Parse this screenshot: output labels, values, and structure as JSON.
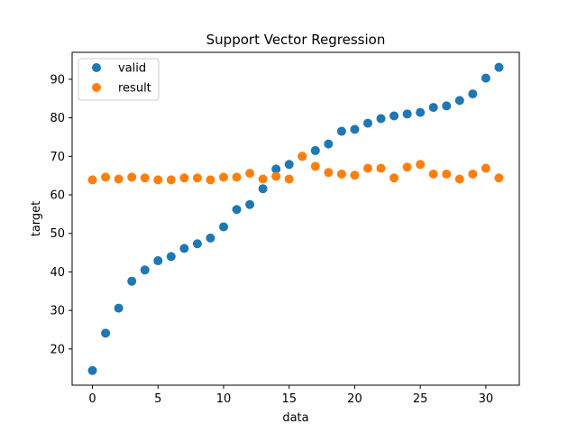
{
  "chart_data": {
    "type": "scatter",
    "title": "Support Vector Regression",
    "xlabel": "data",
    "ylabel": "target",
    "xlim": [
      -1.55,
      32.55
    ],
    "ylim": [
      10.6,
      97.0
    ],
    "x_ticks": [
      0,
      5,
      10,
      15,
      20,
      25,
      30
    ],
    "y_ticks": [
      20,
      30,
      40,
      50,
      60,
      70,
      80,
      90
    ],
    "grid": false,
    "legend_position": "top-left",
    "x": [
      0,
      1,
      2,
      3,
      4,
      5,
      6,
      7,
      8,
      9,
      10,
      11,
      12,
      13,
      14,
      15,
      16,
      17,
      18,
      19,
      20,
      21,
      22,
      23,
      24,
      25,
      26,
      27,
      28,
      29,
      30,
      31
    ],
    "series": [
      {
        "name": "valid",
        "color": "#1f77b4",
        "values": [
          14.4,
          24.1,
          30.6,
          37.6,
          40.5,
          42.9,
          44.0,
          46.1,
          47.3,
          48.8,
          51.7,
          56.2,
          57.5,
          61.6,
          66.7,
          67.9,
          70.0,
          71.5,
          73.2,
          76.5,
          77.0,
          78.6,
          79.8,
          80.5,
          81.0,
          81.4,
          82.7,
          83.1,
          84.5,
          86.2,
          90.3,
          93.1
        ]
      },
      {
        "name": "result",
        "color": "#ff7f0e",
        "values": [
          63.9,
          64.6,
          64.1,
          64.6,
          64.4,
          63.9,
          63.9,
          64.4,
          64.4,
          63.9,
          64.6,
          64.6,
          65.6,
          64.1,
          64.8,
          64.1,
          70.0,
          67.4,
          65.8,
          65.4,
          65.1,
          66.9,
          66.9,
          64.4,
          67.2,
          67.9,
          65.4,
          65.4,
          64.1,
          65.4,
          66.9,
          64.4
        ]
      }
    ]
  }
}
